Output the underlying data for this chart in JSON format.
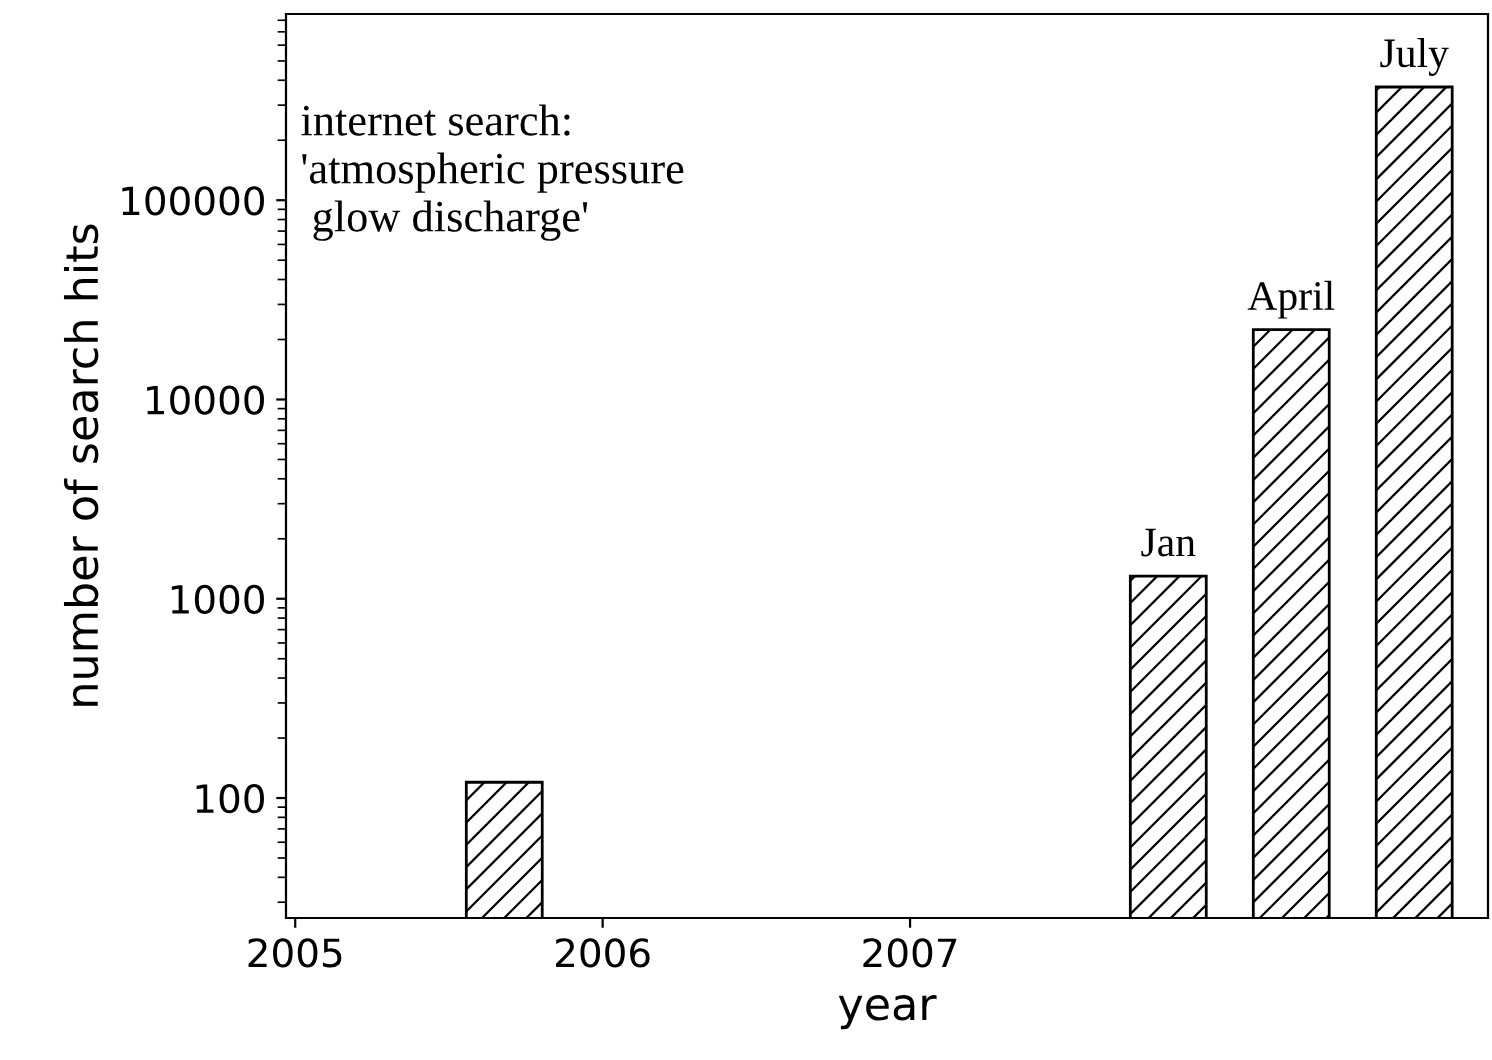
{
  "chart_data": {
    "type": "bar",
    "xlabel": "year",
    "ylabel": "number of search hits",
    "x": [
      2005.68,
      2007.84,
      2008.24,
      2008.64
    ],
    "values": [
      120,
      1300,
      22400,
      370000
    ],
    "color": "#000000",
    "log": "y",
    "xlim": [
      2004.97,
      2008.88
    ],
    "xticks": [
      2005,
      2006,
      2007
    ],
    "ylim": [
      25,
      860000
    ],
    "yticks": [
      100,
      1000,
      10000,
      100000
    ],
    "grid": false,
    "legend": false,
    "annotations": [
      "internet search:\n'atmospheric pressure\n glow discharge'",
      {
        "text": "Jan",
        "x": 2007.84,
        "y": 1300
      },
      {
        "text": "April",
        "x": 2008.24,
        "y": 22400
      },
      {
        "text": "July",
        "x": 2008.64,
        "y": 370000
      }
    ]
  }
}
